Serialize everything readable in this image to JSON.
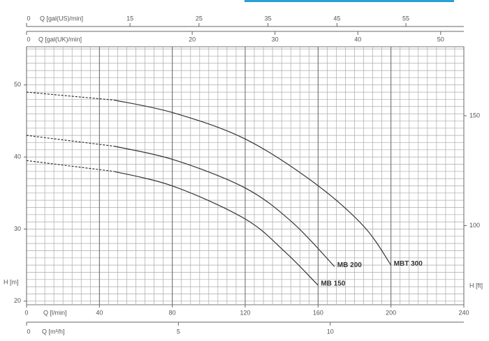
{
  "chart_data": {
    "type": "line",
    "x_label": "Q [l/min]",
    "y_label": "H [m]",
    "y2_label": "H [ft]",
    "top_axis_label": "Q [gal(US)/min]",
    "top2_axis_label": "Q [gal(UK)/min]",
    "bottom2_axis_label": "Q [m³/h]",
    "xlim": [
      0,
      240
    ],
    "xticks": [
      0,
      40,
      80,
      120,
      160,
      200,
      240
    ],
    "ylim": [
      19.5,
      55.3
    ],
    "yticks": [
      20,
      30,
      40,
      50
    ],
    "y2lim": [
      64.0,
      181.4
    ],
    "y2ticks": [
      100,
      150
    ],
    "top_lim": [
      0,
      63.4
    ],
    "top_ticks": [
      0,
      15,
      25,
      35,
      45,
      55
    ],
    "top2_lim": [
      0,
      52.8
    ],
    "top2_ticks": [
      0,
      20,
      30,
      40,
      50
    ],
    "bottom2_lim": [
      0,
      14.4
    ],
    "bottom2_ticks": [
      0,
      5,
      10
    ],
    "grid": true,
    "x_minor_step": 5,
    "y_minor_step": 1,
    "dashed_below_x": 48,
    "series": [
      {
        "name": "MBT 300",
        "color": "#333333",
        "x": [
          0,
          48,
          81,
          120,
          158,
          185,
          200
        ],
        "values": [
          49,
          47.9,
          46.1,
          42.5,
          36.4,
          30.4,
          25
        ]
      },
      {
        "name": "MB 200",
        "color": "#333333",
        "x": [
          0,
          48,
          81,
          120,
          146,
          169
        ],
        "values": [
          43,
          41.5,
          39.6,
          35.7,
          30.9,
          24.8
        ]
      },
      {
        "name": "MB 150",
        "color": "#333333",
        "x": [
          0,
          48,
          81,
          120,
          142,
          160
        ],
        "values": [
          39.5,
          38,
          35.9,
          31.4,
          26.8,
          22.2
        ]
      }
    ]
  }
}
